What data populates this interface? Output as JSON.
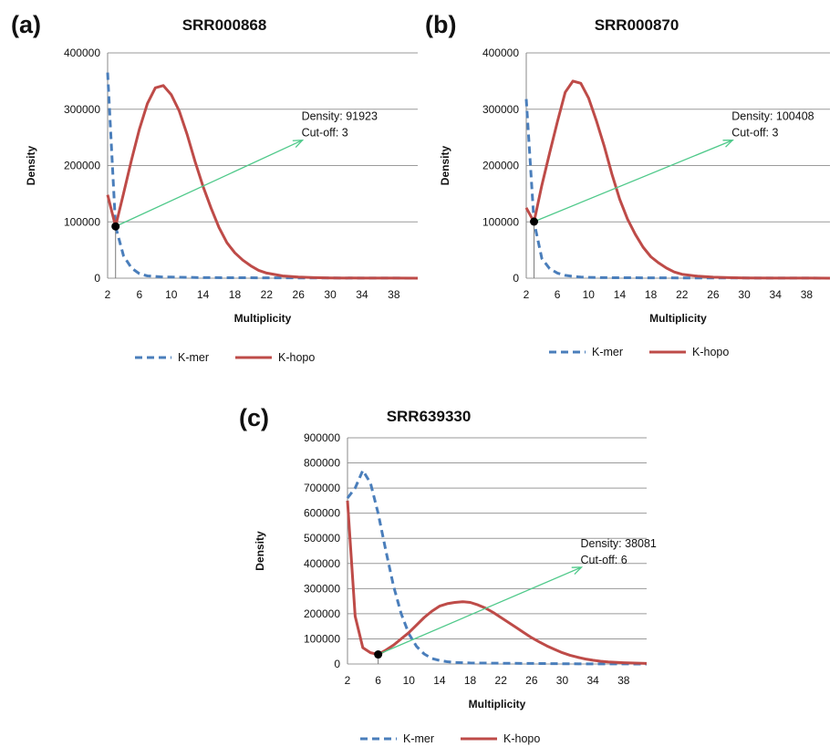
{
  "colors": {
    "kmer": "#4a7ebb",
    "khopo": "#be4b48",
    "arrow": "#4fc98a",
    "grid": "#9a9a9a",
    "marker": "#000000"
  },
  "chart_data": [
    {
      "panel": "(a)",
      "type": "line",
      "title": "SRR000868",
      "xlabel": "Multiplicity",
      "ylabel": "Density",
      "xlim": [
        2,
        41
      ],
      "ylim": [
        0,
        400000
      ],
      "xticks": [
        2,
        6,
        10,
        14,
        18,
        22,
        26,
        30,
        34,
        38
      ],
      "yticks": [
        0,
        100000,
        200000,
        300000,
        400000
      ],
      "grid": true,
      "legend_position": "bottom",
      "series": [
        {
          "name": "K-mer",
          "style": "dashed",
          "x": [
            2,
            3,
            4,
            5,
            6,
            7,
            8,
            9,
            10,
            12,
            14,
            18,
            22,
            26,
            30,
            34,
            38,
            41
          ],
          "values": [
            365000,
            92000,
            40000,
            18000,
            8000,
            4000,
            3000,
            2000,
            2000,
            1500,
            1000,
            800,
            600,
            500,
            300,
            200,
            100,
            0
          ]
        },
        {
          "name": "K-hopo",
          "style": "solid",
          "x": [
            2,
            3,
            4,
            5,
            6,
            7,
            8,
            9,
            10,
            11,
            12,
            13,
            14,
            15,
            16,
            17,
            18,
            19,
            20,
            21,
            22,
            24,
            26,
            28,
            30,
            34,
            38,
            41
          ],
          "values": [
            148000,
            92000,
            150000,
            210000,
            265000,
            310000,
            338000,
            342000,
            326000,
            297000,
            255000,
            207000,
            163000,
            125000,
            90000,
            63000,
            45000,
            32000,
            22000,
            14000,
            9000,
            4000,
            2000,
            1000,
            500,
            200,
            100,
            0
          ]
        }
      ],
      "annotation": {
        "text_line1": "Density: 91923",
        "text_line2": "Cut-off: 3",
        "point": [
          3,
          91923
        ],
        "arrow_to": [
          26.5,
          245000
        ]
      }
    },
    {
      "panel": "(b)",
      "type": "line",
      "title": "SRR000870",
      "xlabel": "Multiplicity",
      "ylabel": "Density",
      "xlim": [
        2,
        41
      ],
      "ylim": [
        0,
        400000
      ],
      "xticks": [
        2,
        6,
        10,
        14,
        18,
        22,
        26,
        30,
        34,
        38
      ],
      "yticks": [
        0,
        100000,
        200000,
        300000,
        400000
      ],
      "grid": true,
      "legend_position": "bottom",
      "series": [
        {
          "name": "K-mer",
          "style": "dashed",
          "x": [
            2,
            3,
            4,
            5,
            6,
            7,
            8,
            9,
            10,
            12,
            14,
            18,
            22,
            26,
            30,
            34,
            38,
            41
          ],
          "values": [
            318000,
            100000,
            35000,
            17000,
            9000,
            5000,
            3000,
            2000,
            1500,
            1000,
            800,
            600,
            500,
            400,
            300,
            200,
            100,
            0
          ]
        },
        {
          "name": "K-hopo",
          "style": "solid",
          "x": [
            2,
            3,
            4,
            5,
            6,
            7,
            8,
            9,
            10,
            11,
            12,
            13,
            14,
            15,
            16,
            17,
            18,
            19,
            20,
            21,
            22,
            24,
            26,
            28,
            30,
            34,
            38,
            41
          ],
          "values": [
            125000,
            100000,
            165000,
            222000,
            278000,
            330000,
            350000,
            346000,
            320000,
            280000,
            235000,
            185000,
            140000,
            105000,
            78000,
            55000,
            38000,
            27000,
            18000,
            11000,
            7000,
            3500,
            1800,
            900,
            500,
            200,
            100,
            0
          ]
        }
      ],
      "annotation": {
        "text_line1": "Density: 100408",
        "text_line2": "Cut-off: 3",
        "point": [
          3,
          100408
        ],
        "arrow_to": [
          28.5,
          245000
        ]
      }
    },
    {
      "panel": "(c)",
      "type": "line",
      "title": "SRR639330",
      "xlabel": "Multiplicity",
      "ylabel": "Density",
      "xlim": [
        2,
        41
      ],
      "ylim": [
        0,
        900000
      ],
      "xticks": [
        2,
        6,
        10,
        14,
        18,
        22,
        26,
        30,
        34,
        38
      ],
      "yticks": [
        0,
        100000,
        200000,
        300000,
        400000,
        500000,
        600000,
        700000,
        800000,
        900000
      ],
      "grid": true,
      "legend_position": "bottom",
      "series": [
        {
          "name": "K-mer",
          "style": "dashed",
          "x": [
            2,
            3,
            4,
            5,
            6,
            7,
            8,
            9,
            10,
            11,
            12,
            13,
            14,
            15,
            16,
            18,
            22,
            26,
            30,
            34,
            38,
            41
          ],
          "values": [
            660000,
            700000,
            770000,
            720000,
            600000,
            450000,
            310000,
            200000,
            120000,
            70000,
            40000,
            22000,
            14000,
            9000,
            6000,
            4000,
            3000,
            2000,
            1000,
            500,
            200,
            0
          ]
        },
        {
          "name": "K-hopo",
          "style": "solid",
          "x": [
            2,
            3,
            4,
            5,
            6,
            7,
            8,
            9,
            10,
            11,
            12,
            13,
            14,
            15,
            16,
            17,
            18,
            19,
            20,
            21,
            22,
            23,
            24,
            25,
            26,
            27,
            28,
            29,
            30,
            31,
            32,
            33,
            34,
            35,
            36,
            38,
            41
          ],
          "values": [
            650000,
            190000,
            65000,
            45000,
            38081,
            55000,
            75000,
            100000,
            125000,
            155000,
            185000,
            210000,
            230000,
            240000,
            245000,
            248000,
            245000,
            235000,
            222000,
            205000,
            185000,
            165000,
            145000,
            125000,
            105000,
            88000,
            72000,
            58000,
            45000,
            35000,
            27000,
            20000,
            15000,
            11000,
            8000,
            5000,
            2000
          ]
        }
      ],
      "annotation": {
        "text_line1": "Density: 38081",
        "text_line2": "Cut-off: 6",
        "point": [
          6,
          38081
        ],
        "arrow_to": [
          32.5,
          385000
        ]
      }
    }
  ]
}
